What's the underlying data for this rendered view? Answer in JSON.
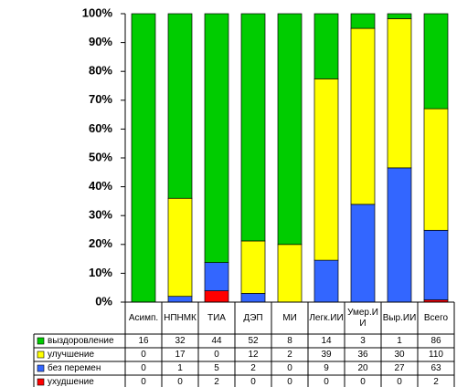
{
  "chart_data": {
    "type": "bar",
    "stacking": "percent",
    "categories": [
      "Асимп.",
      "НПНМК",
      "ТИА",
      "ДЭП",
      "МИ",
      "Легк.ИИ",
      "Умер.ИИ",
      "Выр.ИИ",
      "Всего"
    ],
    "series": [
      {
        "name": "выздоровление",
        "color": "#00cc00",
        "values": [
          16,
          32,
          44,
          52,
          8,
          14,
          3,
          1,
          86
        ]
      },
      {
        "name": "улучшение",
        "color": "#ffff00",
        "values": [
          0,
          17,
          0,
          12,
          2,
          39,
          36,
          30,
          110
        ]
      },
      {
        "name": "без перемен",
        "color": "#3366ff",
        "values": [
          0,
          1,
          5,
          2,
          0,
          9,
          20,
          27,
          63
        ]
      },
      {
        "name": "ухудшение",
        "color": "#ff0000",
        "values": [
          0,
          0,
          2,
          0,
          0,
          0,
          0,
          0,
          2
        ]
      }
    ],
    "ylim": [
      0,
      100
    ],
    "yticks": [
      {
        "value": 0,
        "label": "0%"
      },
      {
        "value": 10,
        "label": "10%"
      },
      {
        "value": 20,
        "label": "20%"
      },
      {
        "value": 30,
        "label": "30%"
      },
      {
        "value": 40,
        "label": "40%"
      },
      {
        "value": 50,
        "label": "50%"
      },
      {
        "value": 60,
        "label": "60%"
      },
      {
        "value": 70,
        "label": "70%"
      },
      {
        "value": 80,
        "label": "80%"
      },
      {
        "value": 90,
        "label": "90%"
      },
      {
        "value": 100,
        "label": "100%"
      }
    ],
    "grid": false,
    "data_table": true
  }
}
